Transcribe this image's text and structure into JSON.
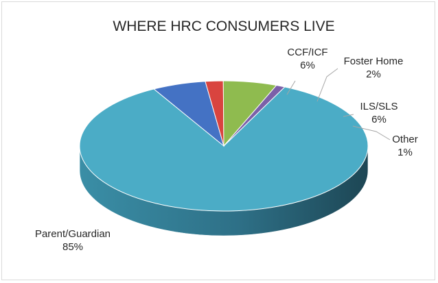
{
  "chart_data": {
    "type": "pie",
    "title": "WHERE HRC CONSUMERS LIVE",
    "three_d": true,
    "slices": [
      {
        "label": "Parent/Guardian",
        "value": 85,
        "pct_label": "85%",
        "color": "#4bacc6"
      },
      {
        "label": "CCF/ICF",
        "value": 6,
        "pct_label": "6%",
        "color": "#4472c4"
      },
      {
        "label": "Foster Home",
        "value": 2,
        "pct_label": "2%",
        "color": "#d9443f"
      },
      {
        "label": "ILS/SLS",
        "value": 6,
        "pct_label": "6%",
        "color": "#8fbb4f"
      },
      {
        "label": "Other",
        "value": 1,
        "pct_label": "1%",
        "color": "#7b60a8"
      }
    ]
  }
}
